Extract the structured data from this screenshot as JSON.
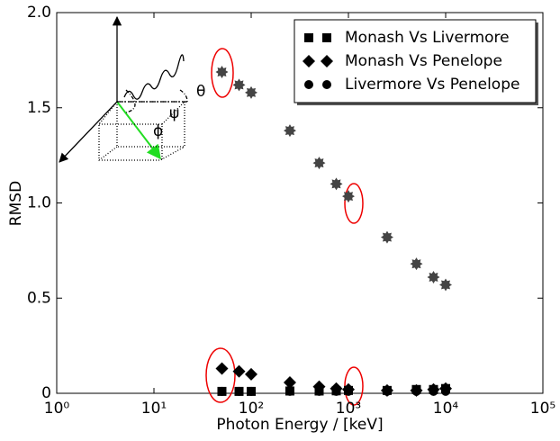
{
  "chart_data": {
    "type": "scatter",
    "xlabel": "Photon Energy / [keV]",
    "ylabel": "RMSD",
    "xscale": "log",
    "xlim": [
      1,
      100000
    ],
    "xticks": [
      {
        "value": 1,
        "label": "10⁰"
      },
      {
        "value": 10,
        "label": "10¹"
      },
      {
        "value": 100,
        "label": "10²"
      },
      {
        "value": 1000,
        "label": "10³"
      },
      {
        "value": 10000,
        "label": "10⁴"
      },
      {
        "value": 100000,
        "label": "10⁵"
      }
    ],
    "ylim": [
      0,
      2
    ],
    "yticks": [
      0,
      0.5,
      {
        "value": 1,
        "label": "1.0"
      },
      1.5,
      {
        "value": 2,
        "label": "2.0"
      }
    ],
    "legend": "upper right",
    "x": [
      50,
      75,
      100,
      250,
      500,
      750,
      1000,
      2500,
      5000,
      7500,
      10000
    ],
    "series": [
      {
        "color": "#444444",
        "marker": "star",
        "values": [
          1.688,
          1.62,
          1.58,
          1.38,
          1.21,
          1.1,
          1.035,
          0.82,
          0.68,
          0.61,
          0.57
        ]
      },
      {
        "name": "Monash Vs Livermore",
        "color": "#000000",
        "marker": "square",
        "values": [
          0.01,
          0.01,
          0.01,
          0.012,
          0.012,
          0.013,
          0.015,
          0.015,
          0.02,
          0.02,
          0.025
        ]
      },
      {
        "name": "Monash Vs Penelope",
        "color": "#000000",
        "marker": "diamond",
        "values": [
          0.13,
          0.115,
          0.1,
          0.057,
          0.035,
          0.025,
          0.02,
          0.015,
          0.015,
          0.02,
          0.025
        ]
      },
      {
        "name": "Livermore Vs Penelope",
        "color": "#000000",
        "marker": "circle",
        "values": [
          0.01,
          0.01,
          0.01,
          0.01,
          0.01,
          0.01,
          0.01,
          0.01,
          0.01,
          0.01,
          0.01
        ]
      }
    ],
    "annotations": [
      "θ",
      "ψ",
      "ϕ"
    ]
  }
}
